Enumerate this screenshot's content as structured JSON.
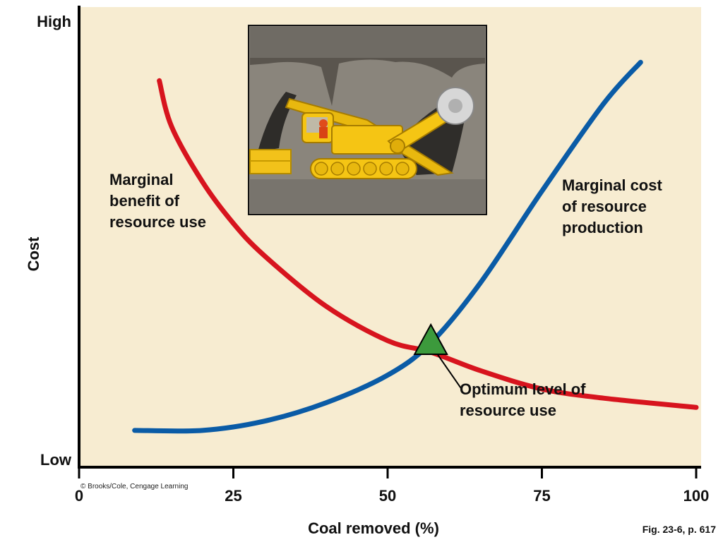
{
  "chart_data": {
    "type": "line",
    "xlabel": "Coal removed (%)",
    "ylabel": "Cost",
    "xlim": [
      0,
      101
    ],
    "ylim": [
      0,
      100
    ],
    "x_ticks": [
      0,
      25,
      50,
      75,
      100
    ],
    "y_tick_labels": {
      "low": "Low",
      "high": "High"
    },
    "grid": false,
    "legend": "none",
    "background": "#f7ecd1",
    "series": [
      {
        "name": "",
        "color": "#d7141e",
        "points": [
          [
            13,
            84
          ],
          [
            15,
            74
          ],
          [
            20,
            62
          ],
          [
            25,
            53
          ],
          [
            30,
            46
          ],
          [
            40,
            35
          ],
          [
            50,
            27.5
          ],
          [
            57,
            25
          ],
          [
            65,
            21
          ],
          [
            75,
            17
          ],
          [
            85,
            15
          ],
          [
            100,
            13
          ]
        ]
      },
      {
        "name": "",
        "color": "#0a5ba6",
        "points": [
          [
            9,
            8
          ],
          [
            20,
            8
          ],
          [
            30,
            10
          ],
          [
            40,
            14
          ],
          [
            50,
            20
          ],
          [
            57,
            27
          ],
          [
            65,
            40
          ],
          [
            75,
            60
          ],
          [
            85,
            79
          ],
          [
            91,
            88
          ]
        ]
      }
    ],
    "optimum": {
      "x": 57,
      "y": 27
    },
    "annotations": {
      "benefit": [
        "Marginal",
        "benefit of",
        "resource use"
      ],
      "cost": [
        "Marginal cost",
        "of resource",
        "production"
      ],
      "optimum": [
        "Optimum level of",
        "resource use"
      ]
    },
    "image_marker": "mining-machine-illustration"
  },
  "credit": "© Brooks/Cole, Cengage Learning",
  "figure_ref": "Fig. 23-6, p. 617"
}
